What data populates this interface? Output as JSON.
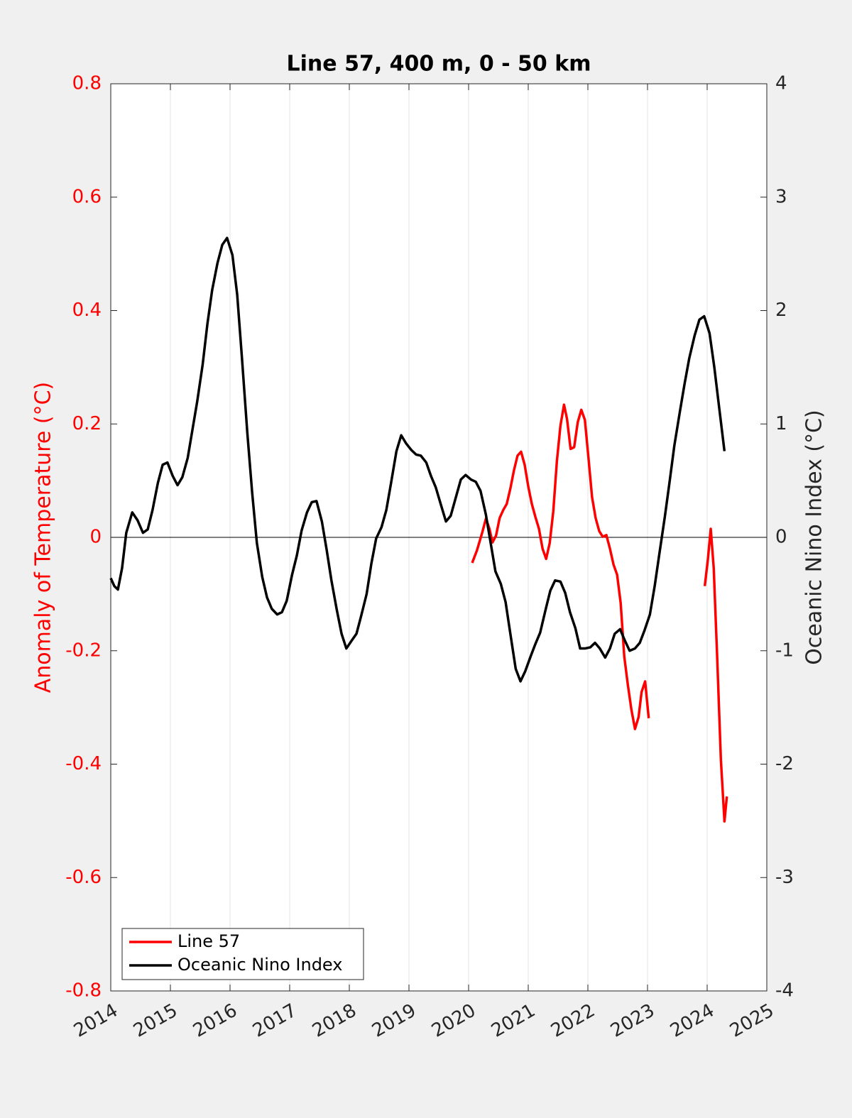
{
  "chart_data": {
    "type": "line",
    "title": "Line 57, 400 m, 0 - 50 km",
    "ylabel": "Anomaly of Temperature (°C)",
    "y2label": "Oceanic Nino Index (°C)",
    "ycolor": "#ff0000",
    "xlim": [
      2014,
      2025
    ],
    "xticks": [
      2014,
      2015,
      2016,
      2017,
      2018,
      2019,
      2020,
      2021,
      2022,
      2023,
      2024,
      2025
    ],
    "ylim": [
      -0.8,
      0.8
    ],
    "yticks": [
      -0.8,
      -0.6,
      -0.4,
      -0.2,
      0,
      0.2,
      0.4,
      0.6,
      0.8
    ],
    "y2lim": [
      -4,
      4
    ],
    "y2ticks": [
      -4,
      -3,
      -2,
      -1,
      0,
      1,
      2,
      3,
      4
    ],
    "grid": "x",
    "zero_line": true,
    "legend": "lower left",
    "series": [
      {
        "name": "Line 57",
        "color": "#ff0000",
        "axis": "y",
        "x": [
          2020.06,
          2020.14,
          2020.23,
          2020.29,
          2020.35,
          2020.4,
          2020.46,
          2020.52,
          2020.58,
          2020.64,
          2020.7,
          2020.76,
          2020.82,
          2020.88,
          2020.94,
          2021.0,
          2021.06,
          2021.12,
          2021.18,
          2021.24,
          2021.3,
          2021.36,
          2021.42,
          2021.48,
          2021.54,
          2021.6,
          2021.65,
          2021.71,
          2021.77,
          2021.83,
          2021.89,
          2021.95,
          2022.01,
          2022.07,
          2022.13,
          2022.19,
          2022.25,
          2022.31,
          2022.37,
          2022.43,
          2022.49,
          2022.55,
          2022.61,
          2022.67,
          2022.73,
          2022.79,
          2022.85,
          2022.9,
          2022.96,
          2023.02,
          null,
          2023.96,
          2024.01,
          2024.06,
          2024.11,
          2024.17,
          2024.23,
          2024.29,
          2024.33
        ],
        "values": [
          -0.045,
          -0.023,
          0.009,
          0.033,
          0.015,
          -0.009,
          0.003,
          0.034,
          0.048,
          0.059,
          0.086,
          0.118,
          0.144,
          0.151,
          0.128,
          0.09,
          0.059,
          0.036,
          0.015,
          -0.02,
          -0.038,
          -0.01,
          0.046,
          0.134,
          0.197,
          0.234,
          0.209,
          0.156,
          0.159,
          0.203,
          0.225,
          0.207,
          0.14,
          0.071,
          0.034,
          0.011,
          0.001,
          0.004,
          -0.02,
          -0.048,
          -0.066,
          -0.116,
          -0.21,
          -0.26,
          -0.304,
          -0.338,
          -0.317,
          -0.273,
          -0.254,
          -0.319,
          null,
          -0.086,
          -0.041,
          0.015,
          -0.054,
          -0.217,
          -0.392,
          -0.501,
          -0.457
        ]
      },
      {
        "name": "Oceanic Nino Index",
        "color": "#000000",
        "axis": "y2",
        "x": [
          2014.0,
          2014.06,
          2014.12,
          2014.19,
          2014.26,
          2014.36,
          2014.45,
          2014.54,
          2014.62,
          2014.7,
          2014.79,
          2014.87,
          2014.95,
          2015.04,
          2015.12,
          2015.2,
          2015.29,
          2015.37,
          2015.45,
          2015.54,
          2015.62,
          2015.7,
          2015.79,
          2015.87,
          2015.95,
          2016.04,
          2016.12,
          2016.2,
          2016.29,
          2016.37,
          2016.45,
          2016.54,
          2016.62,
          2016.7,
          2016.79,
          2016.87,
          2016.95,
          2017.04,
          2017.12,
          2017.2,
          2017.29,
          2017.37,
          2017.45,
          2017.54,
          2017.62,
          2017.7,
          2017.79,
          2017.87,
          2017.95,
          2018.04,
          2018.12,
          2018.2,
          2018.29,
          2018.37,
          2018.45,
          2018.54,
          2018.62,
          2018.7,
          2018.79,
          2018.87,
          2018.95,
          2019.04,
          2019.12,
          2019.2,
          2019.29,
          2019.37,
          2019.45,
          2019.54,
          2019.62,
          2019.7,
          2019.79,
          2019.87,
          2019.95,
          2020.04,
          2020.12,
          2020.2,
          2020.29,
          2020.37,
          2020.45,
          2020.54,
          2020.62,
          2020.7,
          2020.79,
          2020.87,
          2020.95,
          2021.04,
          2021.12,
          2021.2,
          2021.29,
          2021.37,
          2021.45,
          2021.54,
          2021.62,
          2021.7,
          2021.79,
          2021.87,
          2021.95,
          2022.04,
          2022.12,
          2022.2,
          2022.29,
          2022.37,
          2022.45,
          2022.54,
          2022.62,
          2022.7,
          2022.79,
          2022.87,
          2022.95,
          2023.04,
          2023.12,
          2023.2,
          2023.29,
          2023.37,
          2023.45,
          2023.54,
          2023.62,
          2023.7,
          2023.79,
          2023.87,
          2023.95,
          2024.04,
          2024.12,
          2024.2,
          2024.29
        ],
        "values": [
          -0.36,
          -0.43,
          -0.46,
          -0.27,
          0.04,
          0.22,
          0.15,
          0.04,
          0.07,
          0.24,
          0.48,
          0.64,
          0.66,
          0.54,
          0.46,
          0.53,
          0.7,
          0.95,
          1.2,
          1.52,
          1.88,
          2.18,
          2.42,
          2.58,
          2.64,
          2.49,
          2.14,
          1.58,
          0.92,
          0.4,
          -0.05,
          -0.35,
          -0.53,
          -0.63,
          -0.68,
          -0.66,
          -0.56,
          -0.33,
          -0.16,
          0.06,
          0.22,
          0.31,
          0.32,
          0.14,
          -0.11,
          -0.38,
          -0.64,
          -0.85,
          -0.98,
          -0.91,
          -0.85,
          -0.69,
          -0.5,
          -0.23,
          -0.01,
          0.09,
          0.24,
          0.48,
          0.76,
          0.9,
          0.83,
          0.77,
          0.73,
          0.72,
          0.66,
          0.54,
          0.44,
          0.28,
          0.14,
          0.19,
          0.36,
          0.51,
          0.55,
          0.51,
          0.49,
          0.41,
          0.2,
          -0.05,
          -0.3,
          -0.41,
          -0.57,
          -0.85,
          -1.16,
          -1.27,
          -1.18,
          -1.05,
          -0.94,
          -0.84,
          -0.64,
          -0.47,
          -0.38,
          -0.39,
          -0.49,
          -0.66,
          -0.8,
          -0.98,
          -0.98,
          -0.97,
          -0.93,
          -0.98,
          -1.06,
          -0.98,
          -0.85,
          -0.81,
          -0.91,
          -1.0,
          -0.98,
          -0.93,
          -0.82,
          -0.68,
          -0.43,
          -0.14,
          0.18,
          0.49,
          0.81,
          1.1,
          1.35,
          1.58,
          1.78,
          1.92,
          1.95,
          1.8,
          1.5,
          1.15,
          0.76
        ]
      }
    ]
  }
}
